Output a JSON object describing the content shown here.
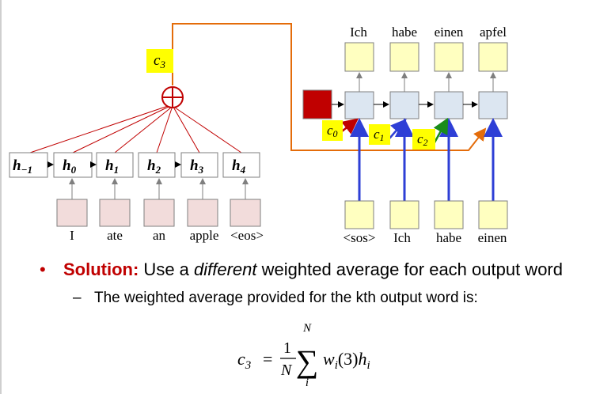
{
  "diagram": {
    "output_words": [
      "Ich",
      "habe",
      "einen",
      "apfel"
    ],
    "decoder_inputs": [
      "<sos>",
      "Ich",
      "habe",
      "einen"
    ],
    "encoder_words": [
      "I",
      "ate",
      "an",
      "apple",
      "<eos>"
    ],
    "hidden_states": [
      {
        "base": "h",
        "sub": "−1"
      },
      {
        "base": "h",
        "sub": "0"
      },
      {
        "base": "h",
        "sub": "1"
      },
      {
        "base": "h",
        "sub": "2"
      },
      {
        "base": "h",
        "sub": "3"
      },
      {
        "base": "h",
        "sub": "4"
      }
    ],
    "context_labels": [
      {
        "base": "c",
        "sub": "3"
      },
      {
        "base": "c",
        "sub": "0"
      },
      {
        "base": "c",
        "sub": "1"
      },
      {
        "base": "c",
        "sub": "2"
      }
    ],
    "colors": {
      "output_box": "#ffffc0",
      "decoder_box": "#dce6f1",
      "encoder_input_box": "#f2dcdb",
      "start_box": "#c00000",
      "context_highlight": "#ffff00",
      "attention_lines": "#c00000",
      "orange_path": "#e46c0a",
      "blue_input": "#2e3fd6",
      "c0_arrow": "#c00000",
      "c1_arrow": "#2e3fd6",
      "c2_arrow": "#1a8c1a"
    }
  },
  "bullet": {
    "label": "Solution:",
    "text_before_em": " Use a ",
    "emphasis": "different",
    "text_after_em": " weighted average for each output word"
  },
  "sub_bullet": {
    "text": "The weighted average provided for the kth output word is:"
  },
  "formula": {
    "lhs": "c",
    "lhs_sub": "3",
    "equals": "=",
    "frac_num": "1",
    "frac_den": "N",
    "sum_upper": "N",
    "sum_lower": "i",
    "term": "w",
    "term_sub": "i",
    "term_arg": "(3)",
    "h": "h",
    "h_sub": "i"
  }
}
